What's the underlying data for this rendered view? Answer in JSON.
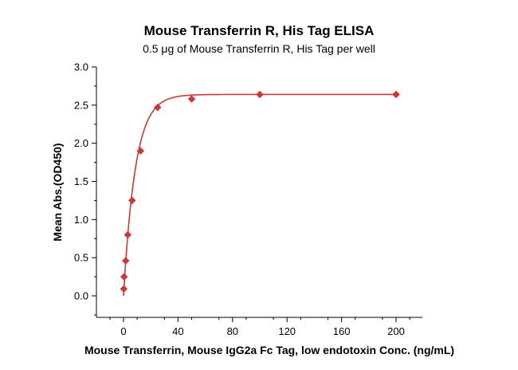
{
  "chart_data": {
    "type": "scatter",
    "title": "Mouse Transferrin R, His Tag ELISA",
    "subtitle": "0.5 μg of Mouse Transferrin R, His Tag per well",
    "xlabel": "Mouse Transferrin, Mouse IgG2a Fc Tag, low endotoxin Conc. (ng/mL)",
    "ylabel": "Mean Abs.(OD450)",
    "xlim": [
      -15,
      215
    ],
    "ylim": [
      -0.3,
      3.0
    ],
    "x_ticks": [
      0,
      40,
      80,
      120,
      160,
      200
    ],
    "y_ticks": [
      0.0,
      0.5,
      1.0,
      1.5,
      2.0,
      2.5,
      3.0
    ],
    "x_tick_labels": [
      "0",
      "40",
      "80",
      "120",
      "160",
      "200"
    ],
    "y_tick_labels": [
      "0.0",
      "0.5",
      "1.0",
      "1.5",
      "2.0",
      "2.5",
      "3.0"
    ],
    "grid": false,
    "series": [
      {
        "points": [
          {
            "x": 0.2,
            "y": 0.09
          },
          {
            "x": 0.4,
            "y": 0.25
          },
          {
            "x": 1.6,
            "y": 0.46
          },
          {
            "x": 3.1,
            "y": 0.8
          },
          {
            "x": 6.3,
            "y": 1.25
          },
          {
            "x": 12.5,
            "y": 1.9
          },
          {
            "x": 25,
            "y": 2.47
          },
          {
            "x": 50,
            "y": 2.58
          },
          {
            "x": 100,
            "y": 2.64
          },
          {
            "x": 200,
            "y": 2.64
          }
        ],
        "color": "#c8393a",
        "marker": "diamond",
        "fit_line": true
      }
    ]
  }
}
